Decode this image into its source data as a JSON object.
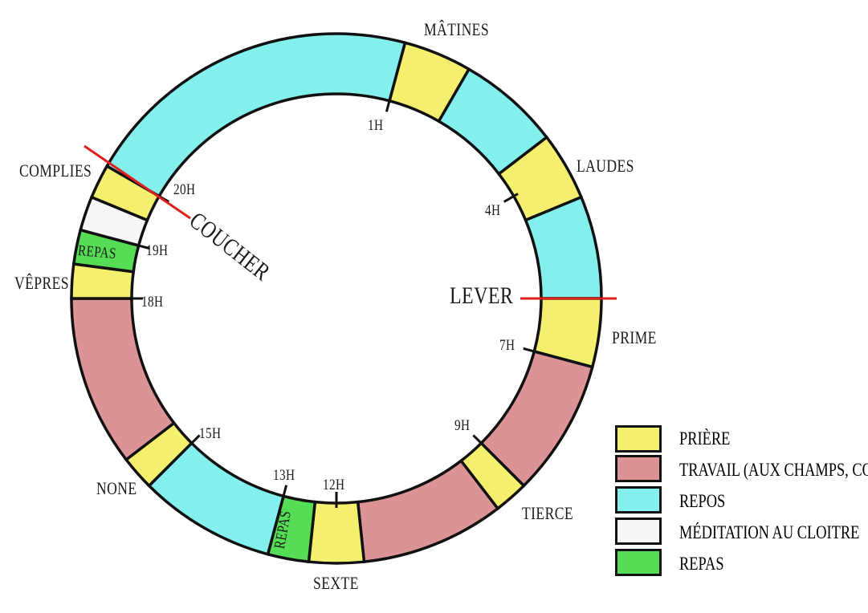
{
  "colors": {
    "priere": "#f5ef6e",
    "travail": "#dc9396",
    "repos": "#84f0ee",
    "meditation": "#f7f5f7",
    "repas": "#55dd55",
    "marker": "#e0201c"
  },
  "segments": [
    {
      "type": "priere",
      "start": 1,
      "end": 2
    },
    {
      "type": "repos",
      "start": 2,
      "end": 3.5
    },
    {
      "type": "priere",
      "start": 3.5,
      "end": 4.5
    },
    {
      "type": "repos",
      "start": 4.5,
      "end": 6
    },
    {
      "type": "priere",
      "start": 6,
      "end": 7
    },
    {
      "type": "travail",
      "start": 7,
      "end": 9
    },
    {
      "type": "priere",
      "start": 9,
      "end": 9.5
    },
    {
      "type": "travail",
      "start": 9.5,
      "end": 11.6
    },
    {
      "type": "priere",
      "start": 11.6,
      "end": 12.4
    },
    {
      "type": "repas",
      "start": 12.4,
      "end": 13
    },
    {
      "type": "repos",
      "start": 13,
      "end": 15
    },
    {
      "type": "priere",
      "start": 15,
      "end": 15.5
    },
    {
      "type": "travail",
      "start": 15.5,
      "end": 18
    },
    {
      "type": "priere",
      "start": 18,
      "end": 18.5
    },
    {
      "type": "repas",
      "start": 18.5,
      "end": 19
    },
    {
      "type": "meditation",
      "start": 19,
      "end": 19.5
    },
    {
      "type": "priere",
      "start": 19.5,
      "end": 20
    },
    {
      "type": "repos",
      "start": 20,
      "end": 25
    }
  ],
  "ticks": [
    1,
    4,
    7,
    9,
    12,
    13,
    15,
    18,
    19,
    20
  ],
  "offices": {
    "matines": "MÂTINES",
    "laudes": "LAUDES",
    "prime": "PRIME",
    "tierce": "TIERCE",
    "sexte": "SEXTE",
    "none": "NONE",
    "vepres": "VÊPRES",
    "complies": "COMPLIES"
  },
  "hours": {
    "h1": "1H",
    "h4": "4H",
    "h7": "7H",
    "h9": "9H",
    "h12": "12H",
    "h13": "13H",
    "h15": "15H",
    "h18": "18H",
    "h19": "19H",
    "h20": "20H"
  },
  "markers": {
    "lever": "LEVER",
    "coucher": "COUCHER"
  },
  "in_ring": {
    "repas_midi": "REPAS",
    "repas_soir": "REPAS"
  },
  "legend": [
    {
      "key": "priere",
      "label": "PRIÈRE"
    },
    {
      "key": "travail",
      "label": "TRAVAIL (AUX CHAMPS, CO"
    },
    {
      "key": "repos",
      "label": "REPOS"
    },
    {
      "key": "meditation",
      "label": "MÉDITATION AU CLOITRE"
    },
    {
      "key": "repas",
      "label": "REPAS"
    }
  ]
}
